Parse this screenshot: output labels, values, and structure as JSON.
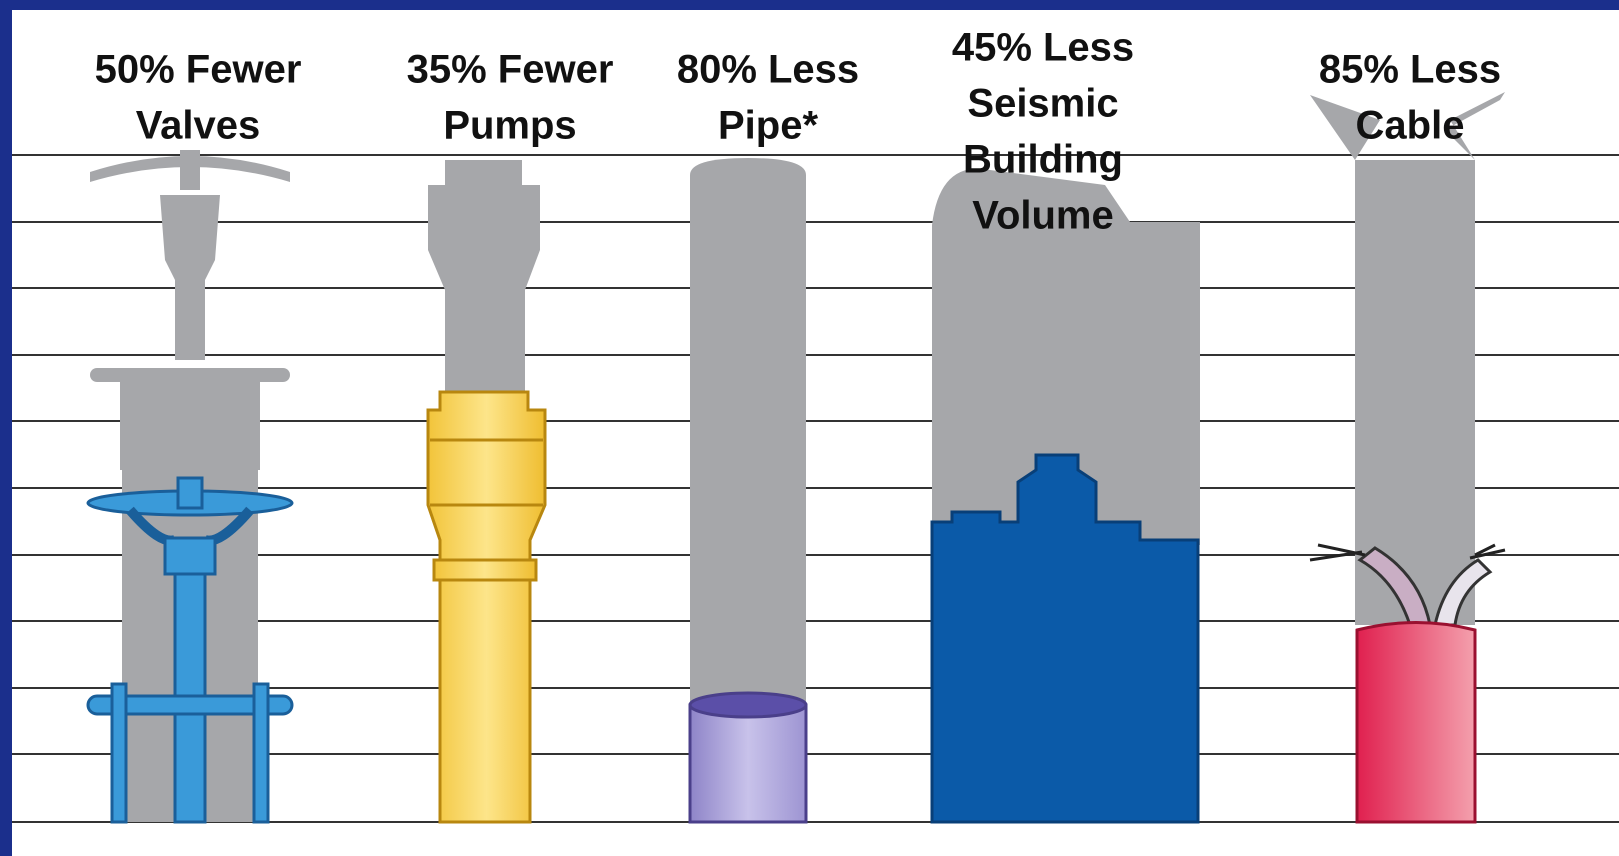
{
  "items": [
    {
      "label": [
        "50% Fewer",
        "Valves"
      ]
    },
    {
      "label": [
        "35% Fewer",
        "Pumps"
      ]
    },
    {
      "label": [
        "80% Less",
        "Pipe*"
      ]
    },
    {
      "label": [
        "45% Less",
        "Seismic",
        "Building",
        "Volume"
      ]
    },
    {
      "label": [
        "85% Less",
        "Cable"
      ]
    }
  ]
}
